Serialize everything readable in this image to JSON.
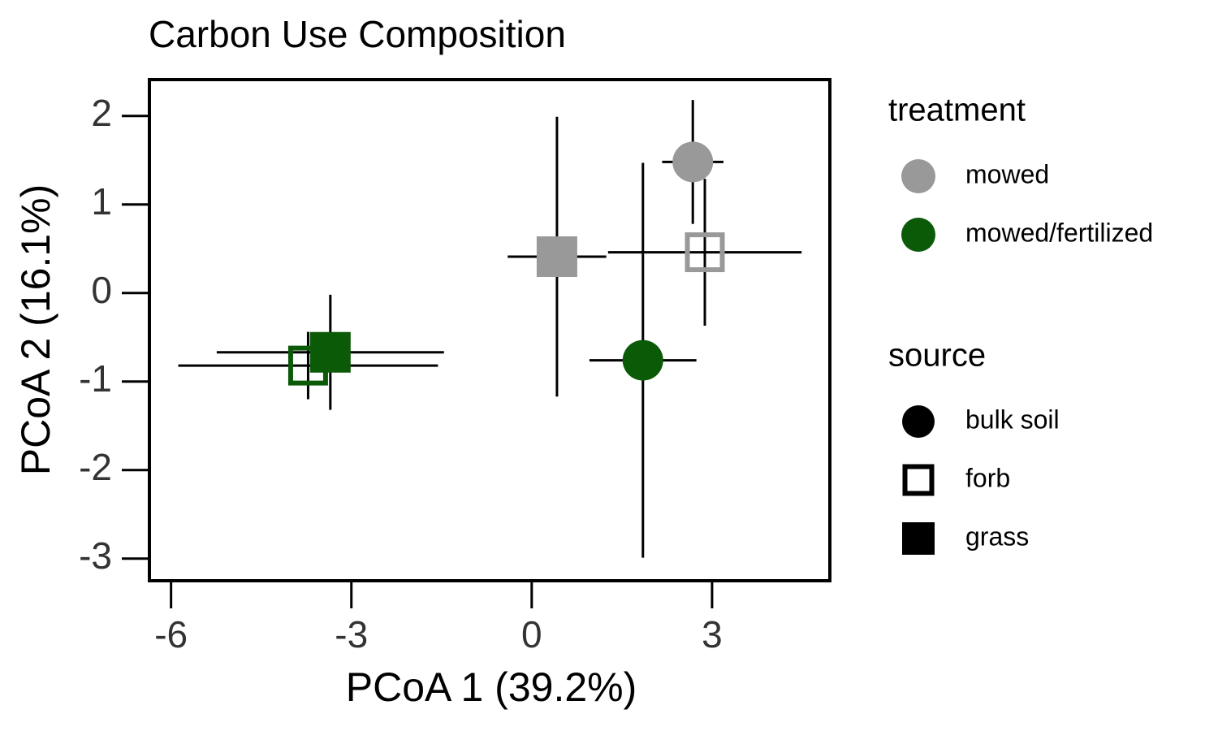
{
  "chart_data": {
    "type": "scatter",
    "title": "Carbon Use Composition",
    "x_label": "PCoA 1 (39.2%)",
    "y_label": "PCoA 2 (16.1%)",
    "xlim": [
      -6.36,
      4.96
    ],
    "xticks": [
      -6,
      -3,
      0,
      3
    ],
    "ylim": [
      -3.25,
      2.41
    ],
    "yticks": [
      -3,
      -2,
      -1,
      0,
      1,
      2
    ],
    "series": [
      {
        "name": "mowed",
        "color": "#999999",
        "x": [
          2.68,
          2.88,
          0.42
        ],
        "values": [
          1.48,
          0.46,
          0.41
        ],
        "xerr": [
          0.51,
          1.61,
          0.82
        ],
        "yerr": [
          0.7,
          0.83,
          1.58
        ]
      },
      {
        "name": "mowed/fertilized",
        "color": "#0b5a08",
        "x": [
          1.85,
          -3.72,
          -3.35
        ],
        "values": [
          -0.76,
          -0.82,
          -0.67
        ],
        "xerr": [
          0.89,
          2.16,
          1.89
        ],
        "yerr": [
          2.23,
          0.38,
          0.65
        ]
      }
    ],
    "treatment_legend": {
      "title": "treatment"
    },
    "source_legend": {
      "title": "source",
      "color": "#000000",
      "items": [
        {
          "name": "bulk soil",
          "shape": "circle"
        },
        {
          "name": "forb",
          "shape": "open-square"
        },
        {
          "name": "grass",
          "shape": "square"
        }
      ]
    }
  }
}
